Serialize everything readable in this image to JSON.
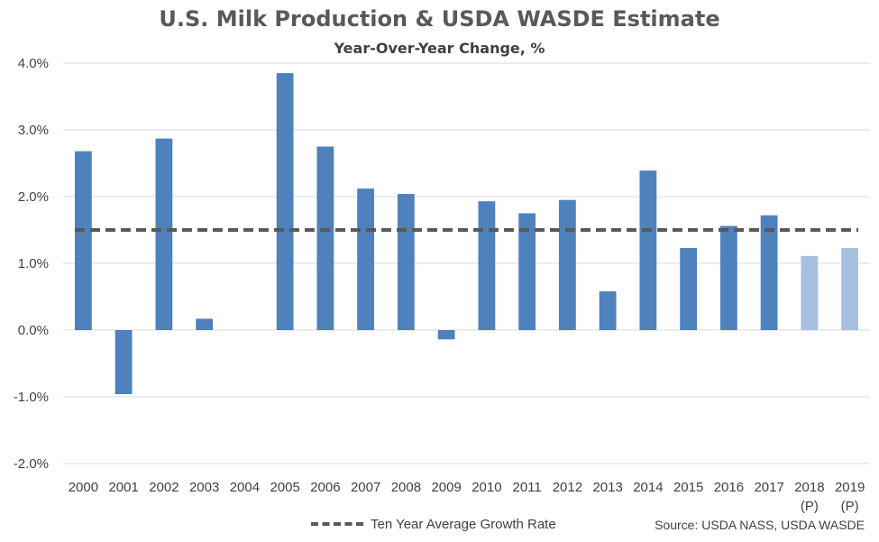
{
  "chart_data": {
    "type": "bar",
    "title": "U.S. Milk Production & USDA WASDE Estimate",
    "subtitle": "Year-Over-Year Change, %",
    "categories": [
      "2000",
      "2001",
      "2002",
      "2003",
      "2004",
      "2005",
      "2006",
      "2007",
      "2008",
      "2009",
      "2010",
      "2011",
      "2012",
      "2013",
      "2014",
      "2015",
      "2016",
      "2017",
      "2018",
      "2019"
    ],
    "category_sublabels": [
      "",
      "",
      "",
      "",
      "",
      "",
      "",
      "",
      "",
      "",
      "",
      "",
      "",
      "",
      "",
      "",
      "",
      "",
      "(P)",
      "(P)"
    ],
    "values": [
      2.68,
      -0.96,
      2.87,
      0.17,
      0.0,
      3.85,
      2.75,
      2.12,
      2.04,
      -0.14,
      1.93,
      1.75,
      1.95,
      0.58,
      2.39,
      1.23,
      1.56,
      1.72,
      1.11,
      1.23
    ],
    "projected": [
      false,
      false,
      false,
      false,
      false,
      false,
      false,
      false,
      false,
      false,
      false,
      false,
      false,
      false,
      false,
      false,
      false,
      false,
      true,
      true
    ],
    "reference_line": {
      "name": "Ten Year Average Growth Rate",
      "value": 1.5,
      "style": "dashed"
    },
    "ylim": [
      -2.0,
      4.0
    ],
    "yticks": [
      -2.0,
      -1.0,
      0.0,
      1.0,
      2.0,
      3.0,
      4.0
    ],
    "ytick_labels": [
      "-2.0%",
      "-1.0%",
      "0.0%",
      "1.0%",
      "2.0%",
      "3.0%",
      "4.0%"
    ],
    "grid": true,
    "legend_position": "bottom",
    "colors": {
      "actual": "#4f81bd",
      "projected": "#a7c0df",
      "reference": "#595959",
      "grid": "#d9d9d9"
    }
  },
  "source_note": "Source: USDA NASS, USDA WASDE"
}
